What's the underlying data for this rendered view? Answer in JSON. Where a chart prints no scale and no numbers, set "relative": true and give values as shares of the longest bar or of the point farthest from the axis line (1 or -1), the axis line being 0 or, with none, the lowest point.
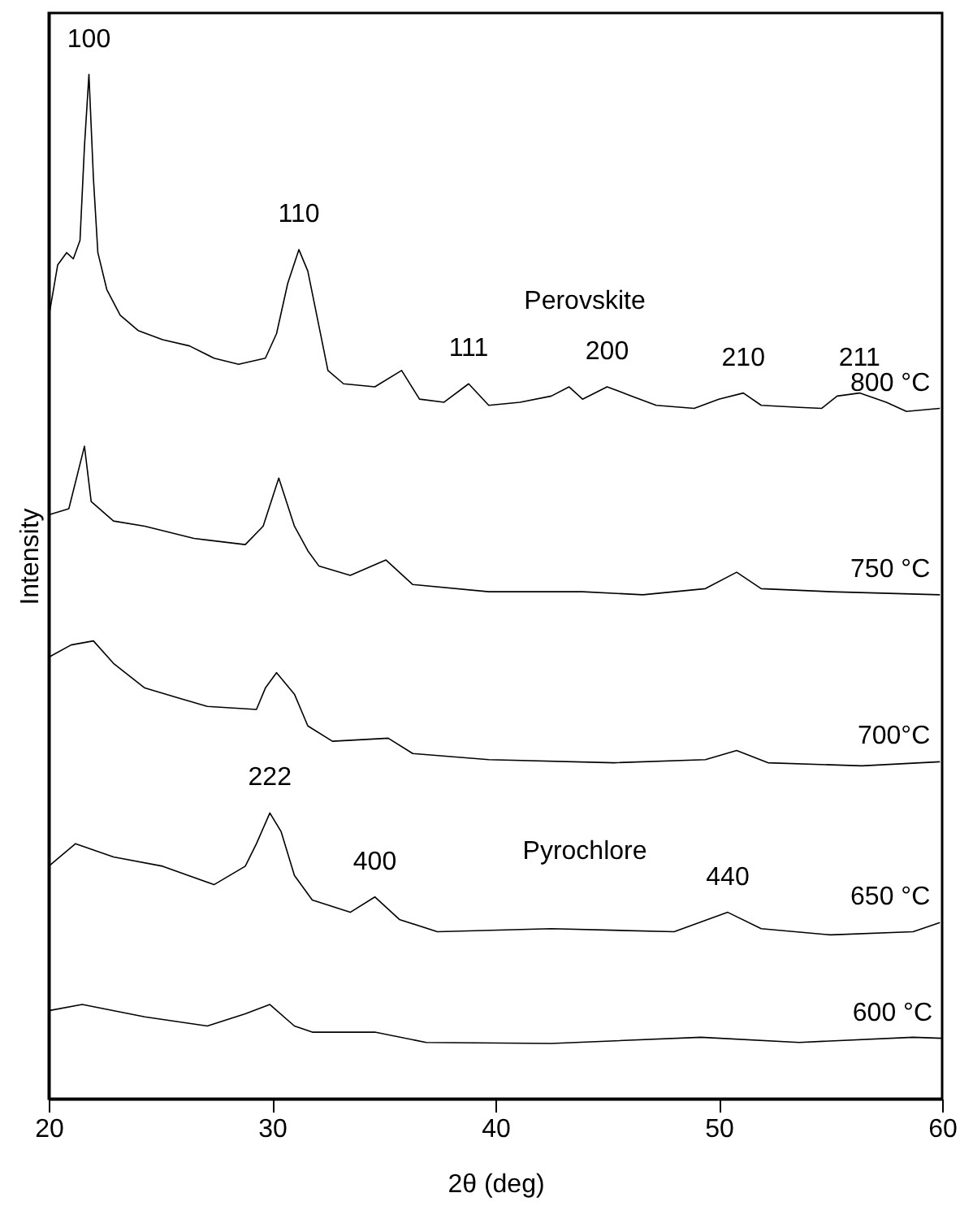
{
  "chart_data": {
    "type": "line",
    "relative": true,
    "xlabel": "2θ (deg)",
    "ylabel": "Intensity",
    "xlim": [
      20,
      60
    ],
    "xticks": [
      20,
      30,
      40,
      50,
      60
    ],
    "tick_labels": "x",
    "grid": false,
    "marker": "none",
    "line_style": "solid",
    "series": [
      {
        "name": "800 °C",
        "color": "#000000",
        "x": [
          20.0,
          20.4,
          20.8,
          21.1,
          21.4,
          21.6,
          21.8,
          22.0,
          22.2,
          22.6,
          23.2,
          24.0,
          25.1,
          26.3,
          27.4,
          28.5,
          29.7,
          30.2,
          30.7,
          31.2,
          31.6,
          32.0,
          32.5,
          33.2,
          34.6,
          35.8,
          36.6,
          37.7,
          38.8,
          39.7,
          41.1,
          42.5,
          43.3,
          43.9,
          45.0,
          46.1,
          47.2,
          48.9,
          50.0,
          51.1,
          51.9,
          53.6,
          54.6,
          55.3,
          56.3,
          57.5,
          58.4,
          59.9
        ],
        "values": [
          0.763,
          0.814,
          0.826,
          0.82,
          0.838,
          0.93,
          1.0,
          0.899,
          0.826,
          0.79,
          0.765,
          0.75,
          0.741,
          0.735,
          0.723,
          0.717,
          0.723,
          0.747,
          0.796,
          0.829,
          0.808,
          0.765,
          0.711,
          0.698,
          0.695,
          0.711,
          0.683,
          0.68,
          0.698,
          0.677,
          0.68,
          0.686,
          0.695,
          0.683,
          0.695,
          0.686,
          0.677,
          0.674,
          0.683,
          0.689,
          0.677,
          0.675,
          0.674,
          0.686,
          0.689,
          0.68,
          0.671,
          0.674
        ]
      },
      {
        "name": "750 °C",
        "color": "#000000",
        "x": [
          20.0,
          20.9,
          21.6,
          21.9,
          22.9,
          24.3,
          26.5,
          28.8,
          29.6,
          30.3,
          31.0,
          31.6,
          32.1,
          33.5,
          35.1,
          36.3,
          39.7,
          43.9,
          46.6,
          49.4,
          50.8,
          51.9,
          55.0,
          59.9
        ],
        "values": [
          0.57,
          0.576,
          0.637,
          0.583,
          0.564,
          0.559,
          0.547,
          0.541,
          0.559,
          0.606,
          0.559,
          0.535,
          0.52,
          0.511,
          0.526,
          0.502,
          0.495,
          0.495,
          0.492,
          0.498,
          0.514,
          0.498,
          0.495,
          0.492
        ]
      },
      {
        "name": "700°C",
        "color": "#000000",
        "x": [
          20.0,
          21.0,
          22.0,
          22.9,
          24.3,
          25.7,
          27.1,
          29.3,
          29.7,
          30.2,
          31.0,
          31.6,
          32.7,
          35.2,
          36.3,
          39.7,
          45.3,
          49.4,
          50.8,
          52.2,
          56.4,
          59.9
        ],
        "values": [
          0.431,
          0.443,
          0.447,
          0.425,
          0.401,
          0.392,
          0.383,
          0.38,
          0.401,
          0.416,
          0.395,
          0.364,
          0.349,
          0.352,
          0.337,
          0.331,
          0.328,
          0.331,
          0.34,
          0.328,
          0.325,
          0.329
        ]
      },
      {
        "name": "650 °C",
        "color": "#000000",
        "x": [
          20.0,
          21.2,
          22.9,
          25.1,
          27.4,
          28.8,
          29.3,
          29.9,
          30.4,
          31.0,
          31.8,
          33.5,
          34.6,
          35.7,
          37.4,
          42.5,
          48.0,
          50.4,
          51.9,
          55.0,
          58.7,
          59.9
        ],
        "values": [
          0.227,
          0.249,
          0.236,
          0.227,
          0.209,
          0.227,
          0.249,
          0.279,
          0.261,
          0.218,
          0.194,
          0.182,
          0.197,
          0.175,
          0.163,
          0.166,
          0.163,
          0.182,
          0.166,
          0.16,
          0.163,
          0.172
        ]
      },
      {
        "name": "600 °C",
        "color": "#000000",
        "x": [
          20.0,
          21.5,
          24.3,
          27.1,
          28.8,
          29.9,
          31.0,
          31.8,
          34.6,
          36.9,
          42.5,
          49.2,
          53.6,
          58.7,
          60.0
        ],
        "values": [
          0.086,
          0.092,
          0.08,
          0.071,
          0.083,
          0.092,
          0.071,
          0.065,
          0.065,
          0.055,
          0.054,
          0.06,
          0.055,
          0.06,
          0.059
        ]
      }
    ],
    "annotations": [
      {
        "text": "100",
        "x": 21.8,
        "y": 1.0
      },
      {
        "text": "110",
        "x": 31.2,
        "y": 0.829
      },
      "Perovskite",
      {
        "text": "111",
        "x": 38.8,
        "y": 0.698
      },
      {
        "text": "200",
        "x": 45.0,
        "y": 0.695
      },
      {
        "text": "210",
        "x": 51.1,
        "y": 0.689
      },
      {
        "text": "211",
        "x": 56.3,
        "y": 0.689
      },
      {
        "text": "222",
        "x": 29.9,
        "y": 0.279
      },
      {
        "text": "400",
        "x": 34.6,
        "y": 0.197
      },
      "Pyrochlore",
      {
        "text": "440",
        "x": 50.4,
        "y": 0.182
      }
    ]
  }
}
